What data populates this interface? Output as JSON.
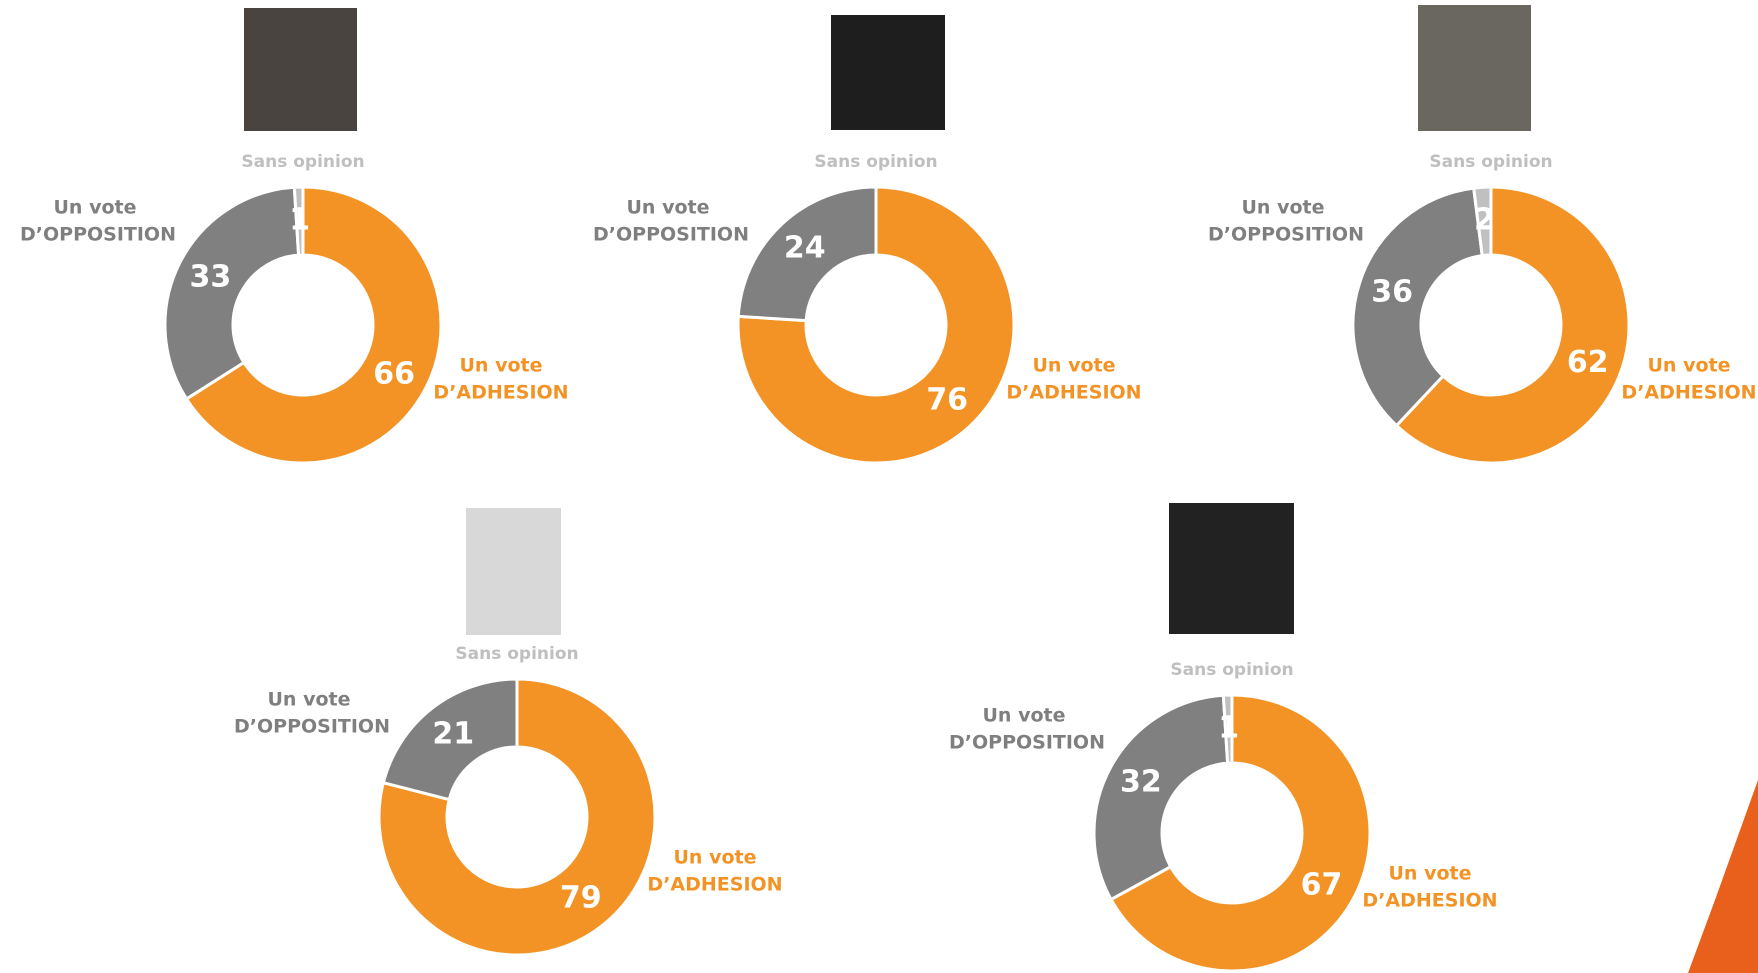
{
  "chart_data": [
    {
      "type": "pie",
      "categories": [
        "Un vote D’ADHESION",
        "Un vote D’OPPOSITION",
        "Sans opinion"
      ],
      "values": [
        66,
        33,
        1
      ],
      "colors": [
        "#f39325",
        "#808080",
        "#c0c0c0"
      ]
    },
    {
      "type": "pie",
      "categories": [
        "Un vote D’ADHESION",
        "Un vote D’OPPOSITION",
        "Sans opinion"
      ],
      "values": [
        76,
        24,
        0
      ],
      "colors": [
        "#f39325",
        "#808080",
        "#c0c0c0"
      ]
    },
    {
      "type": "pie",
      "categories": [
        "Un vote D’ADHESION",
        "Un vote D’OPPOSITION",
        "Sans opinion"
      ],
      "values": [
        62,
        36,
        2
      ],
      "colors": [
        "#f39325",
        "#808080",
        "#c0c0c0"
      ]
    },
    {
      "type": "pie",
      "categories": [
        "Un vote D’ADHESION",
        "Un vote D’OPPOSITION",
        "Sans opinion"
      ],
      "values": [
        79,
        21,
        0
      ],
      "colors": [
        "#f39325",
        "#808080",
        "#c0c0c0"
      ]
    },
    {
      "type": "pie",
      "categories": [
        "Un vote D’ADHESION",
        "Un vote D’OPPOSITION",
        "Sans opinion"
      ],
      "values": [
        67,
        32,
        1
      ],
      "colors": [
        "#f39325",
        "#808080",
        "#c0c0c0"
      ]
    }
  ]
}
